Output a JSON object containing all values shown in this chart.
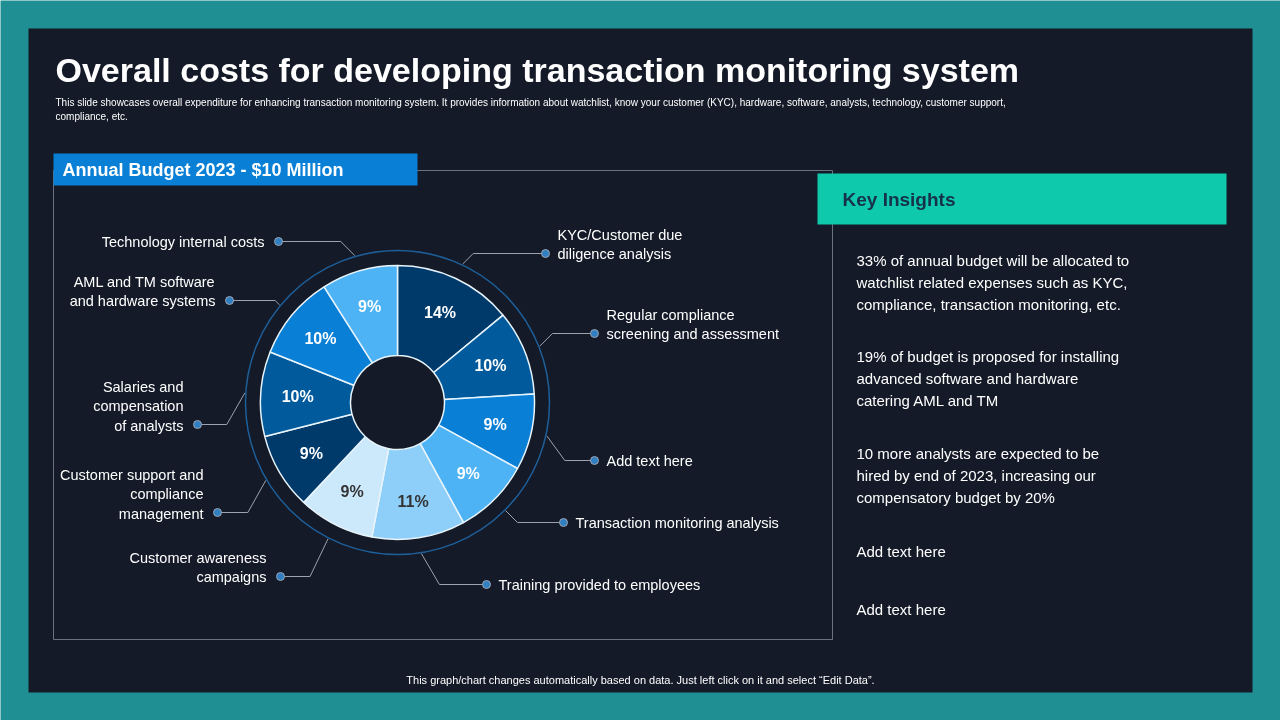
{
  "chart_data": {
    "type": "donut",
    "title": "Overall costs for developing transaction monitoring system",
    "subtitle": "This slide showcases overall expenditure for enhancing transaction monitoring system. It provides information about watchlist, know your customer (KYC), hardware, software, analysts, technology, customer support,\ncompliance, etc.",
    "categories": [
      "KYC/Customer due\ndiligence analysis",
      "Regular compliance\nscreening and assessment",
      "Add text here",
      "Transaction monitoring analysis",
      "Training provided to employees",
      "Customer awareness\ncampaigns",
      "Customer support and\ncompliance\nmanagement",
      "Salaries and\ncompensation\nof analysts",
      "AML and TM software\nand hardware systems",
      "Technology internal costs"
    ],
    "values": [
      14,
      10,
      9,
      9,
      11,
      9,
      9,
      10,
      10,
      9
    ],
    "value_labels": [
      "14%",
      "10%",
      "9%",
      "9%",
      "11%",
      "9%",
      "9%",
      "10%",
      "10%",
      "9%"
    ],
    "colors": [
      "#003a6b",
      "#005a9c",
      "#0a7fd6",
      "#4db3f5",
      "#8dcff8",
      "#cce8fb",
      "#003a6b",
      "#005a9c",
      "#0a7fd6",
      "#4db3f5"
    ],
    "annotations": [
      "Annual Budget 2023 - $10 Million",
      "Key Insights",
      "33% of annual budget will be allocated to\nwatchlist related expenses such as KYC,\ncompliance, transaction monitoring, etc.",
      "19% of budget is proposed for installing\nadvanced software and hardware\ncatering AML and TM",
      "10 more analysts are expected to be\nhired by end of 2023, increasing our\ncompensatory budget by 20%",
      "Add text here",
      "Add text here",
      "This graph/chart changes automatically based on data. Just left click on it and select “Edit Data”."
    ]
  }
}
